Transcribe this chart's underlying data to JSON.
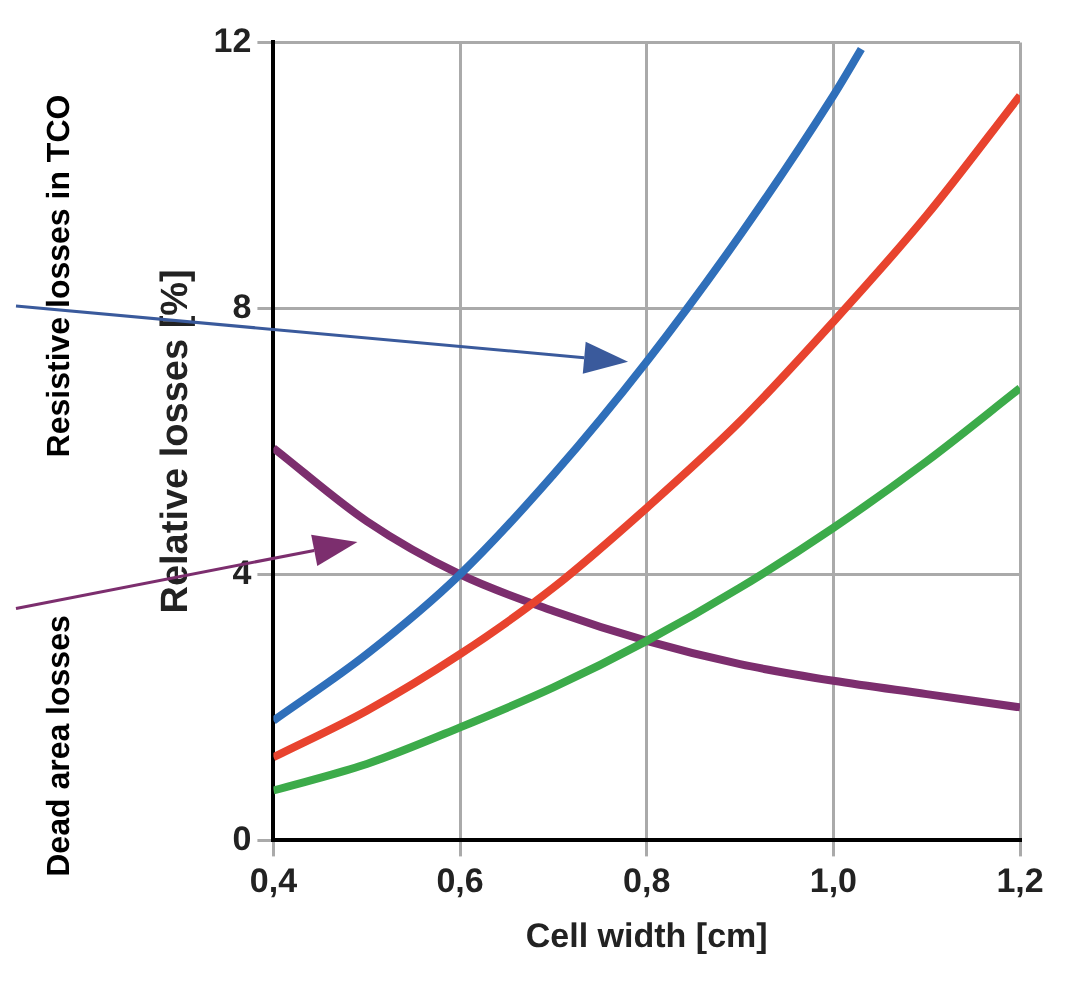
{
  "chart_data": {
    "type": "line",
    "xlabel": "Cell width [cm]",
    "ylabel": "Relative losses [%]",
    "xlim": [
      0.4,
      1.2
    ],
    "xticks": [
      {
        "value": 0.4,
        "label": "0,4"
      },
      {
        "value": 0.6,
        "label": "0,6"
      },
      {
        "value": 0.8,
        "label": "0,8"
      },
      {
        "value": 1.0,
        "label": "1,0"
      },
      {
        "value": 1.2,
        "label": "1,2"
      }
    ],
    "ylim": [
      0,
      12
    ],
    "yticks": [
      0,
      4,
      8,
      12
    ],
    "grid": true,
    "legend": false,
    "marker": "none",
    "line_style": "solid",
    "series": [
      {
        "color": "#2f6fba",
        "x": [
          0.4,
          0.5,
          0.6,
          0.7,
          0.8,
          0.9,
          1.0,
          1.03
        ],
        "values": [
          1.8,
          2.8,
          4.0,
          5.5,
          7.2,
          9.1,
          11.2,
          11.9
        ]
      },
      {
        "color": "#e8432e",
        "x": [
          0.4,
          0.5,
          0.6,
          0.7,
          0.8,
          0.9,
          1.0,
          1.1,
          1.2
        ],
        "values": [
          1.25,
          1.95,
          2.8,
          3.8,
          5.0,
          6.3,
          7.8,
          9.4,
          11.2
        ]
      },
      {
        "color": "#3cab4a",
        "x": [
          0.4,
          0.5,
          0.6,
          0.7,
          0.8,
          0.9,
          1.0,
          1.1,
          1.2
        ],
        "values": [
          0.75,
          1.15,
          1.7,
          2.3,
          3.0,
          3.8,
          4.7,
          5.7,
          6.8
        ]
      },
      {
        "color": "#7c2e6e",
        "x": [
          0.4,
          0.5,
          0.6,
          0.7,
          0.8,
          0.9,
          1.0,
          1.1,
          1.2
        ],
        "values": [
          5.9,
          4.8,
          4.0,
          3.45,
          3.0,
          2.65,
          2.4,
          2.2,
          2.0
        ]
      }
    ],
    "annotations": [
      "Resistive losses in TCO",
      "Dead area losses"
    ]
  }
}
